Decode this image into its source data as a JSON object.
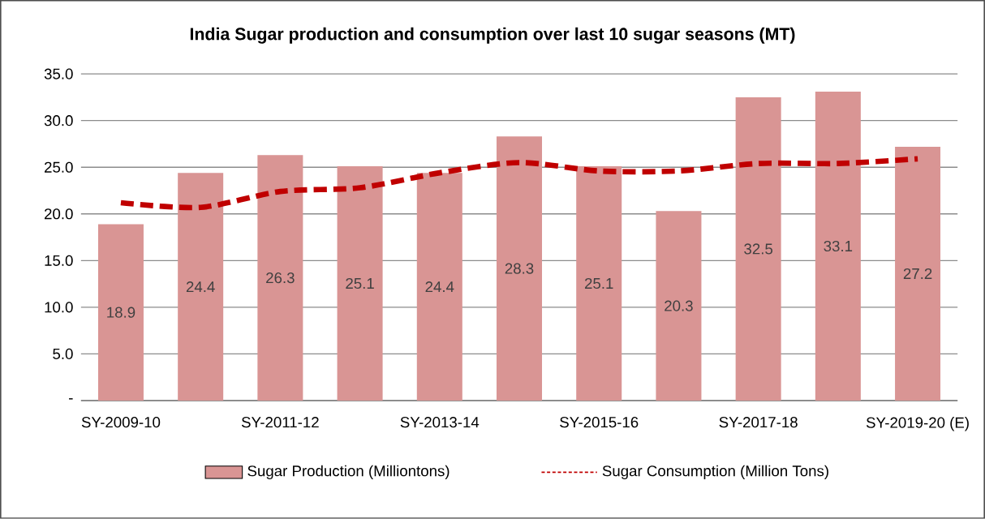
{
  "chart_data": {
    "type": "bar",
    "title": "India Sugar production and consumption over last 10 sugar seasons (MT)",
    "categories": [
      "SY-2009-10",
      null,
      "SY-2011-12",
      null,
      "SY-2013-14",
      null,
      "SY-2015-16",
      null,
      "SY-2017-18",
      null,
      "SY-2019-20 (E)"
    ],
    "series": [
      {
        "name": "Sugar Production (Milliontons)",
        "color": "#d99594",
        "values": [
          18.9,
          24.4,
          26.3,
          25.1,
          24.4,
          28.3,
          25.1,
          20.3,
          32.5,
          33.1,
          27.2
        ],
        "value_labels": [
          "18.9",
          "24.4",
          "26.3",
          "25.1",
          "24.4",
          "28.3",
          "25.1",
          "20.3",
          "32.5",
          "33.1",
          "27.2"
        ]
      },
      {
        "name": "Sugar Consumption (Million Tons)",
        "type": "line",
        "color": "#c00000",
        "line_style": "dashed",
        "values": [
          21.2,
          20.7,
          22.4,
          22.8,
          24.4,
          25.5,
          24.6,
          24.6,
          25.4,
          25.4,
          25.9
        ]
      }
    ],
    "ylim": [
      0,
      35
    ],
    "yticks": [
      {
        "value": 0,
        "label": "-"
      },
      {
        "value": 5,
        "label": "5.0"
      },
      {
        "value": 10,
        "label": "10.0"
      },
      {
        "value": 15,
        "label": "15.0"
      },
      {
        "value": 20,
        "label": "20.0"
      },
      {
        "value": 25,
        "label": "25.0"
      },
      {
        "value": 30,
        "label": "30.0"
      },
      {
        "value": 35,
        "label": "35.0"
      }
    ],
    "grid": "y",
    "legend": "bottom"
  }
}
